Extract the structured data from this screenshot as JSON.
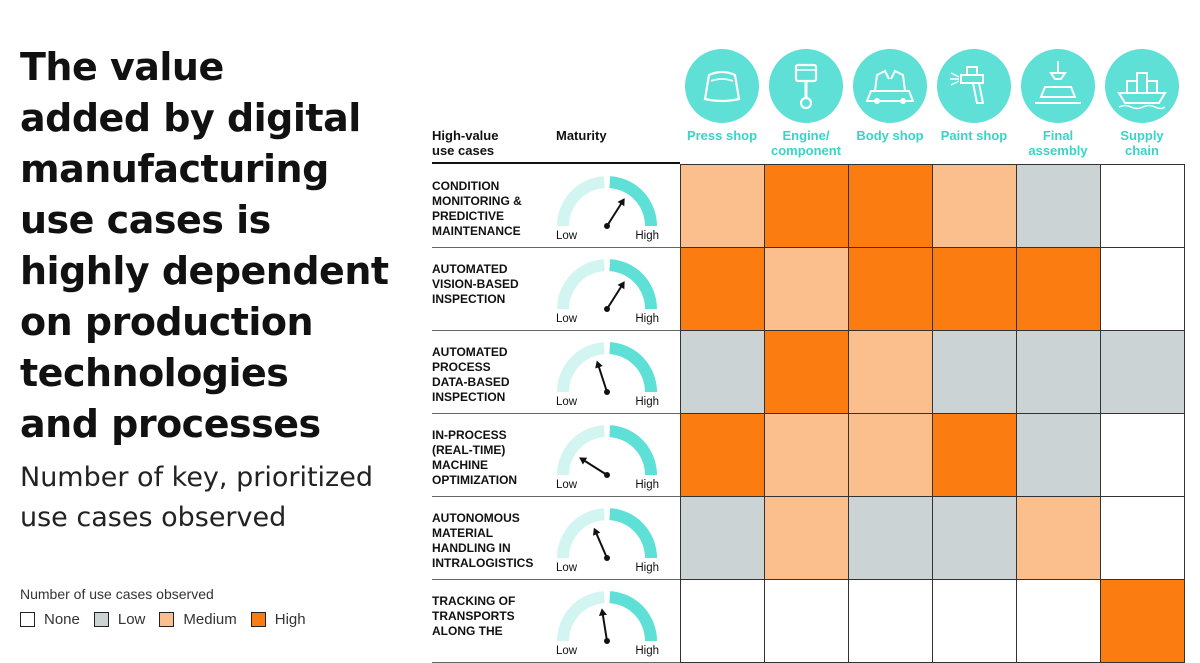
{
  "title_lines": [
    "The value",
    "added by digital",
    "manufacturing",
    "use cases is",
    "highly dependent",
    "on production",
    "technologies",
    "and processes"
  ],
  "subtitle_lines": [
    "Number of key, prioritized",
    "use cases observed"
  ],
  "legend": {
    "title": "Number of use cases observed",
    "items": [
      {
        "label": "None",
        "color": "#ffffff"
      },
      {
        "label": "Low",
        "color": "#ccd3d5"
      },
      {
        "label": "Medium",
        "color": "#fbbf8d"
      },
      {
        "label": "High",
        "color": "#fb7d11"
      }
    ]
  },
  "header": {
    "usecases_lines": [
      "High-value",
      "use cases"
    ],
    "maturity": "Maturity"
  },
  "gauge_labels": {
    "low": "Low",
    "high": "High"
  },
  "colors": {
    "accent": "#5ee0d6",
    "accent_text": "#38d4c8",
    "high": "#fb7d11",
    "medium": "#fbbf8d",
    "low": "#ccd3d5",
    "none": "#ffffff"
  },
  "columns": [
    {
      "lines": [
        "Press shop"
      ],
      "icon": "car-hood-icon"
    },
    {
      "lines": [
        "Engine/",
        "component"
      ],
      "icon": "piston-icon"
    },
    {
      "lines": [
        "Body shop"
      ],
      "icon": "welding-robot-icon"
    },
    {
      "lines": [
        "Paint shop"
      ],
      "icon": "spray-gun-icon"
    },
    {
      "lines": [
        "Final",
        "assembly"
      ],
      "icon": "crane-car-icon"
    },
    {
      "lines": [
        "Supply",
        "chain"
      ],
      "icon": "cargo-ship-icon"
    }
  ],
  "chart_data": {
    "type": "heatmap",
    "categories_x": [
      "Press shop",
      "Engine/component",
      "Body shop",
      "Paint shop",
      "Final assembly",
      "Supply chain"
    ],
    "levels": [
      "None",
      "Low",
      "Medium",
      "High"
    ],
    "rows": [
      {
        "lines": [
          "CONDITION",
          "MONITORING &",
          "PREDICTIVE",
          "MAINTENANCE"
        ],
        "maturity": 0.68,
        "values": [
          "Medium",
          "High",
          "High",
          "Medium",
          "Low",
          "None"
        ]
      },
      {
        "lines": [
          "AUTOMATED",
          "VISION-BASED",
          "INSPECTION"
        ],
        "maturity": 0.68,
        "values": [
          "High",
          "Medium",
          "High",
          "High",
          "High",
          "None"
        ]
      },
      {
        "lines": [
          "AUTOMATED",
          "PROCESS",
          "DATA-BASED",
          "INSPECTION"
        ],
        "maturity": 0.4,
        "values": [
          "Low",
          "High",
          "Medium",
          "Low",
          "Low",
          "Low"
        ]
      },
      {
        "lines": [
          "IN-PROCESS",
          "(REAL-TIME)",
          "MACHINE",
          "OPTIMIZATION"
        ],
        "maturity": 0.18,
        "values": [
          "High",
          "Medium",
          "Medium",
          "High",
          "Low",
          "None"
        ]
      },
      {
        "lines": [
          "AUTONOMOUS",
          "MATERIAL",
          "HANDLING IN",
          "INTRALOGISTICS"
        ],
        "maturity": 0.37,
        "values": [
          "Low",
          "Medium",
          "Low",
          "Low",
          "Medium",
          "None"
        ]
      },
      {
        "lines": [
          "TRACKING OF",
          "TRANSPORTS",
          "ALONG THE"
        ],
        "maturity": 0.45,
        "values": [
          "None",
          "None",
          "None",
          "None",
          "None",
          "High"
        ]
      }
    ]
  }
}
